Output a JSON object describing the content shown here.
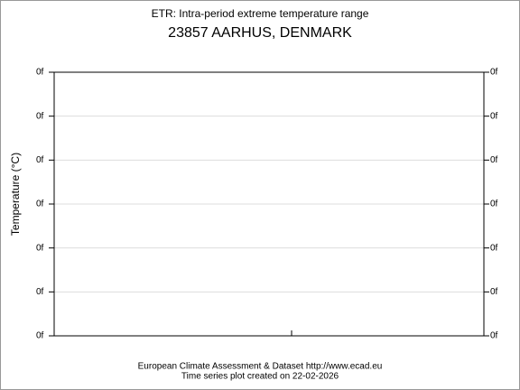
{
  "chart_data": {
    "type": "line",
    "title": "ETR: Intra-period extreme temperature range",
    "subtitle": "23857 AARHUS, DENMARK",
    "y_label": "Temperature (°C)",
    "footer": [
      "European Climate Assessment & Dataset  http://www.ecad.eu",
      "Time series plot created on 22-02-2026"
    ],
    "ylim": [
      0,
      6
    ],
    "yticks": [
      {
        "value": 0,
        "label": "0f"
      },
      {
        "value": 1,
        "label": "0f"
      },
      {
        "value": 2,
        "label": "0f"
      },
      {
        "value": 3,
        "label": "0f"
      },
      {
        "value": 4,
        "label": "0f"
      },
      {
        "value": 5,
        "label": "0f"
      },
      {
        "value": 6,
        "label": "0f"
      }
    ],
    "grid": true,
    "series": []
  }
}
